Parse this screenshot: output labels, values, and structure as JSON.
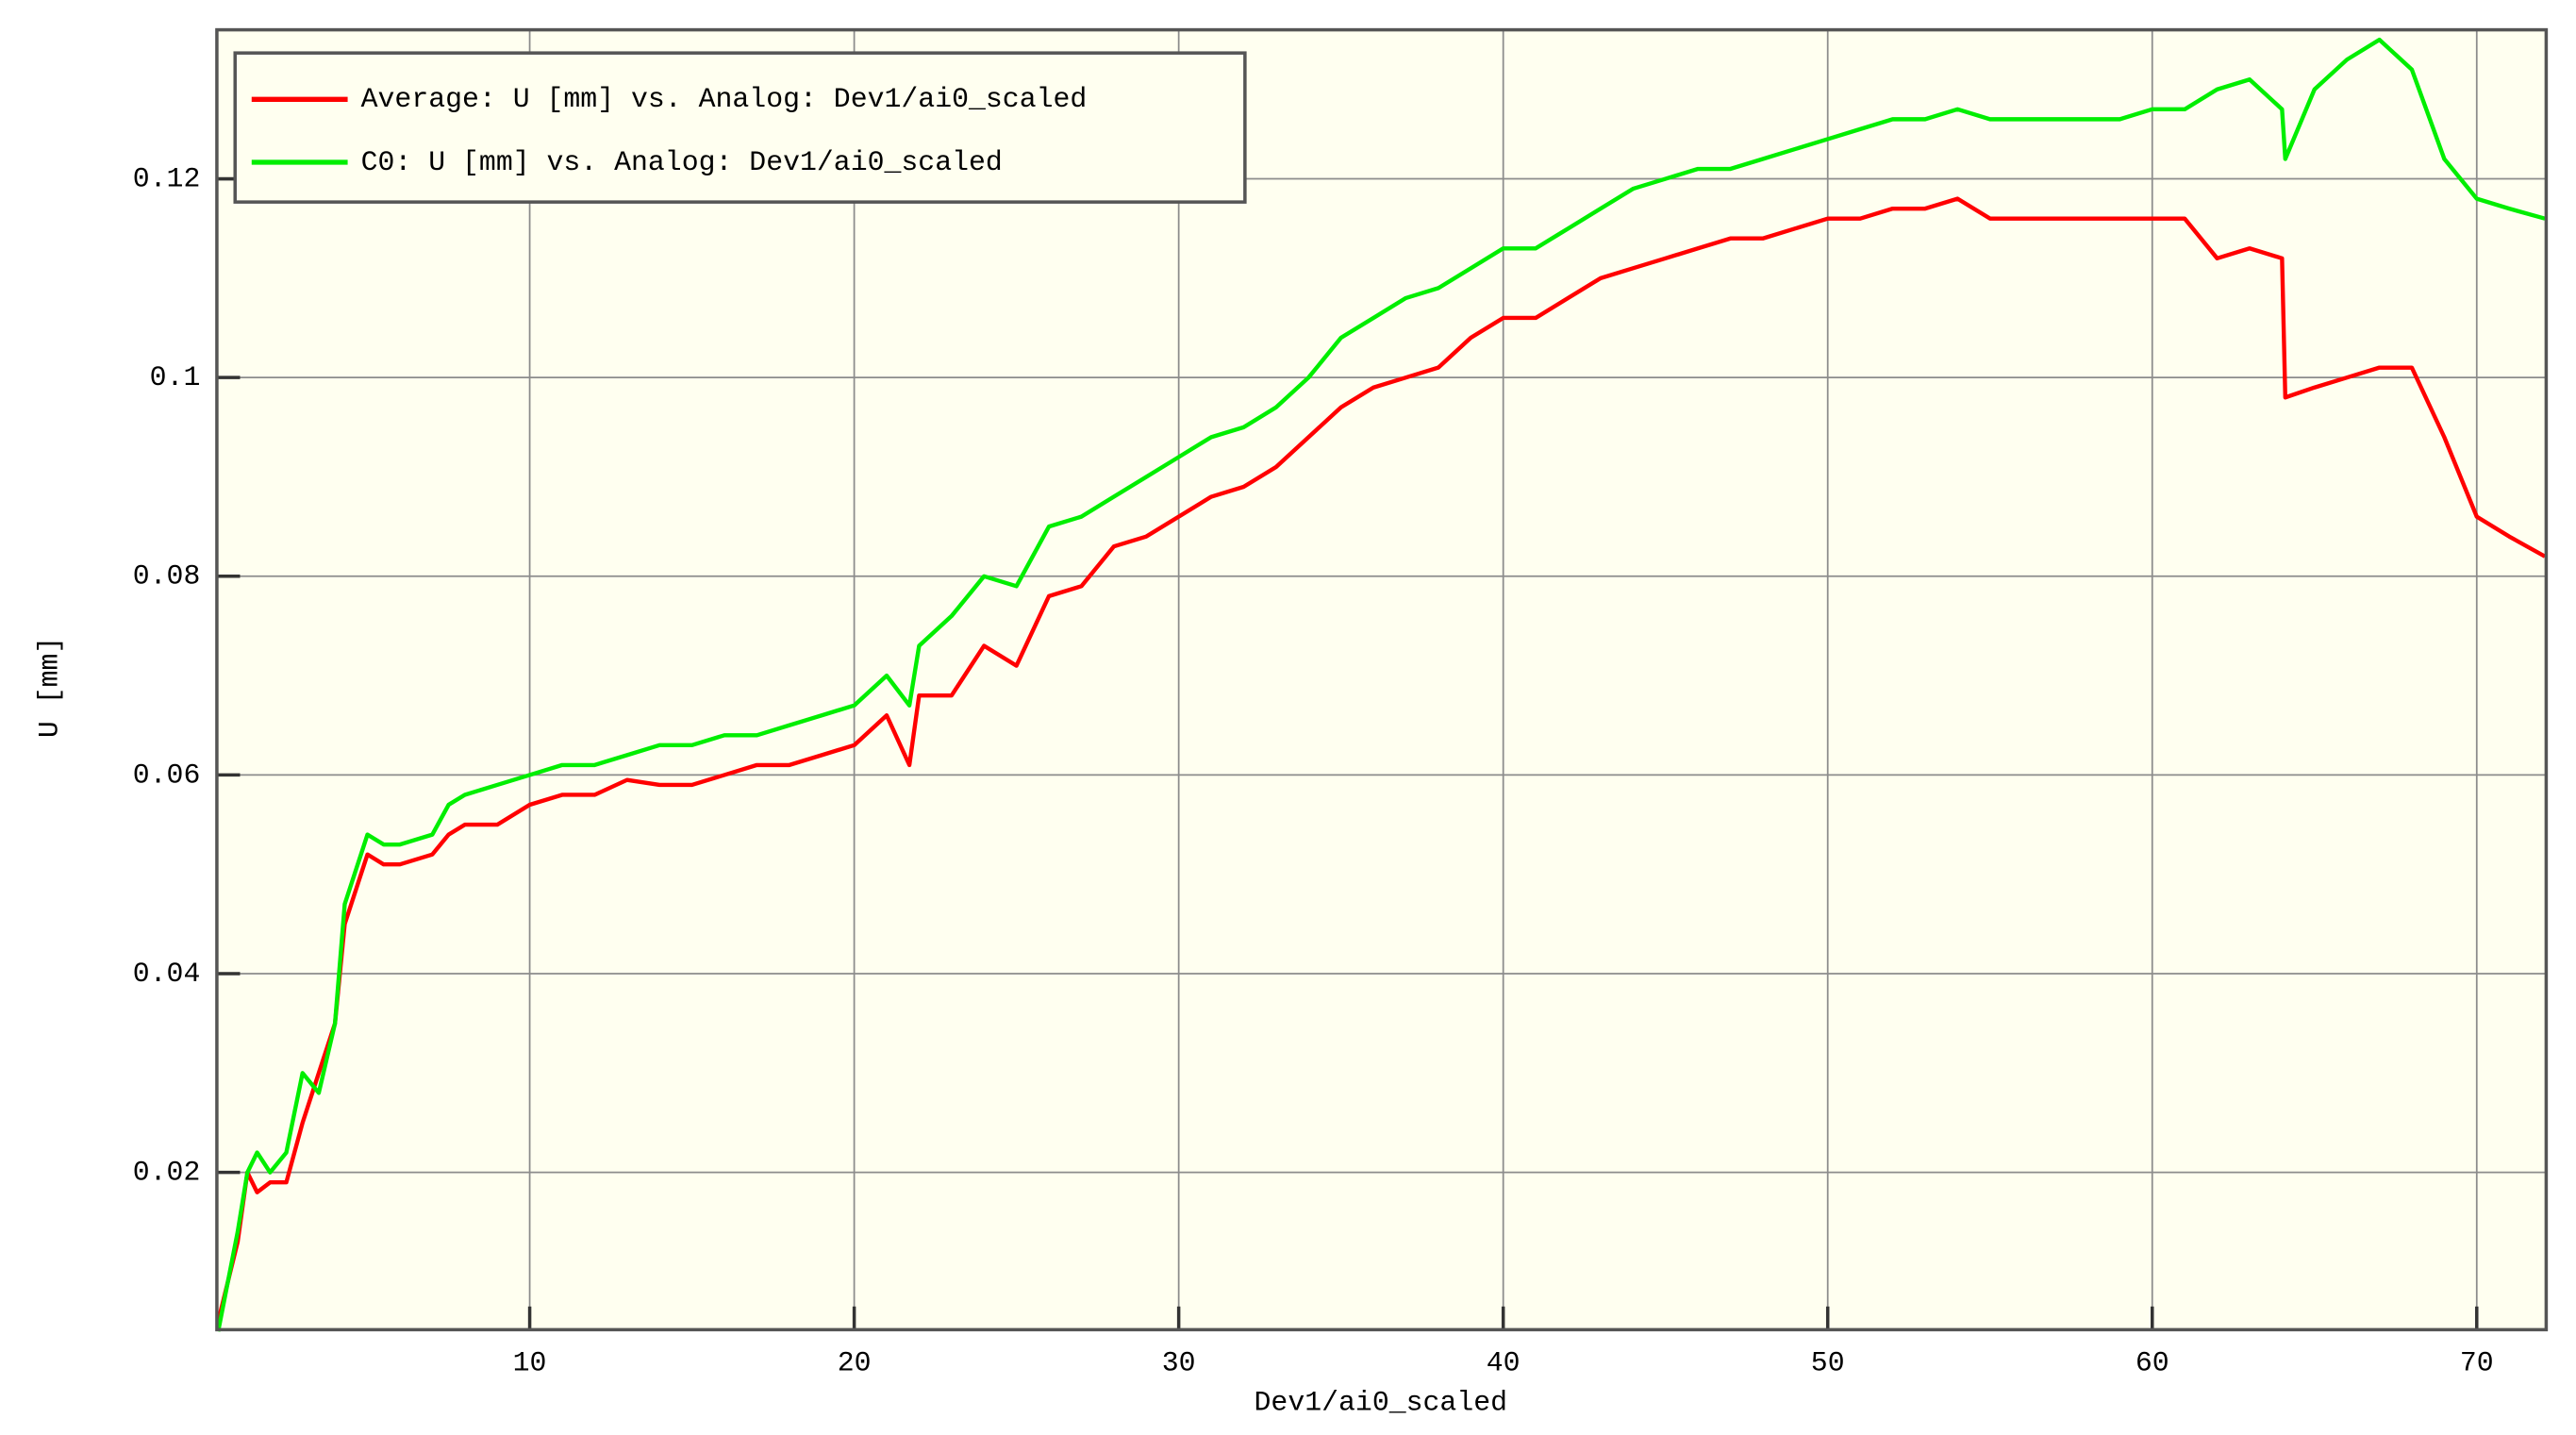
{
  "chart_data": {
    "type": "line",
    "x_label": "Dev1/ai0_scaled",
    "y_label": "U [mm]",
    "xlim": [
      0.36,
      72.14
    ],
    "ylim": [
      0.00417,
      0.135
    ],
    "xticks": [
      10,
      20,
      30,
      40,
      50,
      60,
      70
    ],
    "yticks": [
      0.02,
      0.04,
      0.06,
      0.08,
      0.1,
      0.12
    ],
    "grid": true,
    "legend": "upper left",
    "x": [
      0.4,
      1,
      1.3,
      1.6,
      2,
      2.5,
      3,
      3.5,
      4,
      4.3,
      5,
      5.5,
      6,
      7,
      7.5,
      8,
      9,
      10,
      11,
      12,
      13,
      14,
      15,
      16,
      17,
      18,
      19,
      20,
      21,
      21.7,
      22,
      23,
      24,
      25,
      26,
      27,
      28,
      29,
      30,
      31,
      32,
      33,
      34,
      35,
      36,
      37,
      38,
      39,
      40,
      41,
      42,
      43,
      44,
      45,
      46,
      47,
      48,
      49,
      50,
      51,
      52,
      53,
      54,
      55,
      56,
      57,
      58,
      59,
      60,
      61,
      62,
      63,
      64,
      64.1,
      65,
      66,
      67,
      68,
      69,
      70,
      71,
      72.1
    ],
    "series": [
      {
        "name": "Average: U [mm] vs. Analog: Dev1/ai0_scaled",
        "color": "#ff0000",
        "values": [
          0.005,
          0.013,
          0.02,
          0.018,
          0.019,
          0.019,
          0.025,
          0.03,
          0.035,
          0.045,
          0.052,
          0.051,
          0.051,
          0.052,
          0.054,
          0.055,
          0.055,
          0.057,
          0.058,
          0.058,
          0.0595,
          0.059,
          0.059,
          0.06,
          0.061,
          0.061,
          0.062,
          0.063,
          0.066,
          0.061,
          0.068,
          0.068,
          0.073,
          0.071,
          0.078,
          0.079,
          0.083,
          0.084,
          0.086,
          0.088,
          0.089,
          0.091,
          0.094,
          0.097,
          0.099,
          0.1,
          0.101,
          0.104,
          0.106,
          0.106,
          0.108,
          0.11,
          0.111,
          0.112,
          0.113,
          0.114,
          0.114,
          0.115,
          0.116,
          0.116,
          0.117,
          0.117,
          0.118,
          0.116,
          0.116,
          0.116,
          0.116,
          0.116,
          0.116,
          0.116,
          0.112,
          0.113,
          0.112,
          0.098,
          0.099,
          0.1,
          0.101,
          0.101,
          0.094,
          0.086,
          0.084,
          0.082
        ]
      },
      {
        "name": "C0: U [mm] vs. Analog: Dev1/ai0_scaled",
        "color": "#00ee00",
        "values": [
          0.004,
          0.014,
          0.02,
          0.022,
          0.02,
          0.022,
          0.03,
          0.028,
          0.035,
          0.047,
          0.054,
          0.053,
          0.053,
          0.054,
          0.057,
          0.058,
          0.059,
          0.06,
          0.061,
          0.061,
          0.062,
          0.063,
          0.063,
          0.064,
          0.064,
          0.065,
          0.066,
          0.067,
          0.07,
          0.067,
          0.073,
          0.076,
          0.08,
          0.079,
          0.085,
          0.086,
          0.088,
          0.09,
          0.092,
          0.094,
          0.095,
          0.097,
          0.1,
          0.104,
          0.106,
          0.108,
          0.109,
          0.111,
          0.113,
          0.113,
          0.115,
          0.117,
          0.119,
          0.12,
          0.121,
          0.121,
          0.122,
          0.123,
          0.124,
          0.125,
          0.126,
          0.126,
          0.127,
          0.126,
          0.126,
          0.126,
          0.126,
          0.126,
          0.127,
          0.127,
          0.129,
          0.13,
          0.127,
          0.122,
          0.129,
          0.132,
          0.134,
          0.131,
          0.122,
          0.118,
          0.117,
          0.116
        ]
      }
    ]
  }
}
